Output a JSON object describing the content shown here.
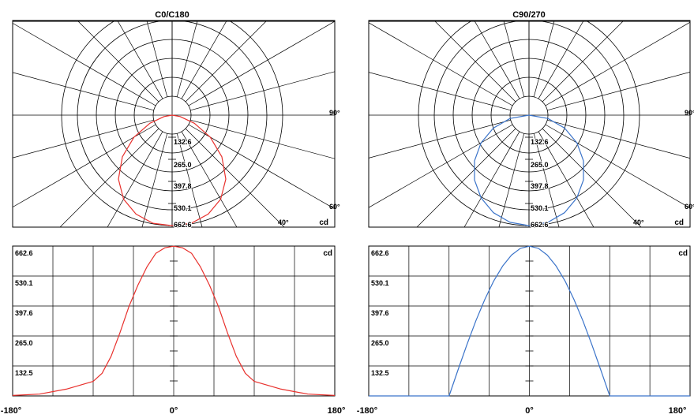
{
  "chart_data": [
    {
      "type": "polar",
      "title": "C0/C180",
      "color": "#e8302c",
      "ring_labels": [
        "132.6",
        "265.0",
        "397.8",
        "530.1",
        "662.6"
      ],
      "angle_labels": [
        "90°",
        "60°",
        "40°"
      ],
      "unit": "cd",
      "rmax": 662.6,
      "curve": [
        [
          0,
          663
        ],
        [
          10,
          659
        ],
        [
          20,
          632
        ],
        [
          30,
          582
        ],
        [
          40,
          501
        ],
        [
          50,
          389
        ],
        [
          60,
          264
        ],
        [
          70,
          142
        ],
        [
          80,
          49
        ],
        [
          90,
          0
        ]
      ]
    },
    {
      "type": "polar",
      "title": "C90/270",
      "color": "#3a73c9",
      "ring_labels": [
        "132.6",
        "265.0",
        "397.8",
        "530.1",
        "662.6"
      ],
      "angle_labels": [
        "90°",
        "60°",
        "40°"
      ],
      "unit": "cd",
      "rmax": 662.6,
      "curve": [
        [
          0,
          663
        ],
        [
          10,
          653
        ],
        [
          20,
          623
        ],
        [
          30,
          574
        ],
        [
          40,
          508
        ],
        [
          50,
          426
        ],
        [
          60,
          332
        ],
        [
          70,
          227
        ],
        [
          80,
          115
        ],
        [
          90,
          0
        ]
      ]
    },
    {
      "type": "line",
      "color": "#e8302c",
      "y_ticks": [
        "662.6",
        "530.1",
        "397.6",
        "265.0",
        "132.5"
      ],
      "unit": "cd",
      "x_tick_labels": [
        "-180°",
        "0°",
        "180°"
      ],
      "xlim": [
        -180,
        180
      ],
      "ylim": [
        0,
        662.6
      ],
      "x": [
        -180,
        -150,
        -120,
        -90,
        -80,
        -70,
        -60,
        -50,
        -40,
        -30,
        -20,
        -10,
        0,
        10,
        20,
        30,
        40,
        50,
        60,
        70,
        80,
        90,
        120,
        150,
        180
      ],
      "y": [
        2,
        8,
        30,
        64,
        100,
        175,
        280,
        395,
        490,
        570,
        630,
        655,
        662,
        655,
        630,
        570,
        490,
        395,
        280,
        175,
        100,
        64,
        30,
        8,
        2
      ]
    },
    {
      "type": "line",
      "color": "#3a73c9",
      "y_ticks": [
        "662.6",
        "530.1",
        "397.6",
        "265.0",
        "132.5"
      ],
      "unit": "cd",
      "x_tick_labels": [
        "-180°",
        "0°",
        "180°"
      ],
      "xlim": [
        -180,
        180
      ],
      "ylim": [
        0,
        662.6
      ],
      "x": [
        -180,
        -120,
        -90,
        -80,
        -70,
        -60,
        -50,
        -40,
        -30,
        -20,
        -10,
        0,
        10,
        20,
        30,
        40,
        50,
        60,
        70,
        80,
        90,
        120,
        180
      ],
      "y": [
        0,
        0,
        0,
        115,
        227,
        332,
        426,
        508,
        574,
        623,
        653,
        662,
        653,
        623,
        574,
        508,
        426,
        332,
        227,
        115,
        0,
        0,
        0
      ]
    }
  ]
}
